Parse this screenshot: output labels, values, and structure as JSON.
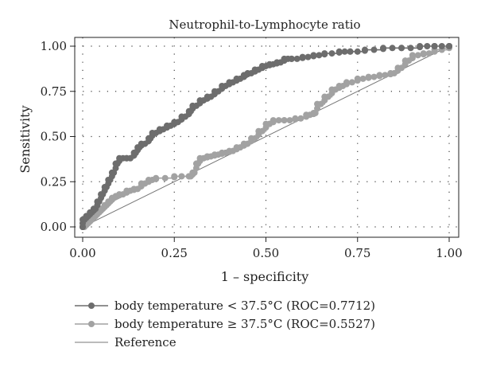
{
  "chart_data": {
    "type": "line",
    "title": "Neutrophil-to-Lymphocyte ratio",
    "xlabel": "1 – specificity",
    "ylabel": "Sensitivity",
    "xlim": [
      0,
      1
    ],
    "ylim": [
      0,
      1
    ],
    "xticks": [
      "0.00",
      "0.25",
      "0.50",
      "0.75",
      "1.00"
    ],
    "yticks": [
      "0.00",
      "0.25",
      "0.50",
      "0.75",
      "1.00"
    ],
    "grid": "dotted",
    "legend_position": "bottom",
    "series": [
      {
        "name": "body temperature < 37.5°C (ROC=0.7712)",
        "color": "#6d6d6d",
        "marker": "circle",
        "x": [
          0,
          0,
          0.01,
          0.02,
          0.03,
          0.04,
          0.05,
          0.06,
          0.07,
          0.08,
          0.09,
          0.1,
          0.12,
          0.14,
          0.15,
          0.16,
          0.18,
          0.19,
          0.21,
          0.23,
          0.25,
          0.27,
          0.29,
          0.3,
          0.32,
          0.34,
          0.36,
          0.38,
          0.4,
          0.42,
          0.44,
          0.45,
          0.47,
          0.49,
          0.51,
          0.53,
          0.55,
          0.57,
          0.6,
          0.63,
          0.66,
          0.7,
          0.73,
          0.77,
          0.82,
          0.87,
          0.92,
          0.96,
          1.0
        ],
        "y": [
          0,
          0.04,
          0.06,
          0.08,
          0.1,
          0.14,
          0.18,
          0.22,
          0.26,
          0.3,
          0.35,
          0.38,
          0.38,
          0.41,
          0.44,
          0.46,
          0.49,
          0.52,
          0.54,
          0.56,
          0.58,
          0.61,
          0.64,
          0.67,
          0.7,
          0.72,
          0.75,
          0.78,
          0.8,
          0.82,
          0.84,
          0.85,
          0.87,
          0.89,
          0.9,
          0.91,
          0.93,
          0.93,
          0.94,
          0.95,
          0.96,
          0.97,
          0.97,
          0.98,
          0.99,
          0.99,
          1.0,
          1.0,
          1.0
        ]
      },
      {
        "name": "body temperature ≥ 37.5°C (ROC=0.5527)",
        "color": "#a2a2a2",
        "marker": "circle",
        "x": [
          0,
          0.01,
          0.02,
          0.03,
          0.04,
          0.05,
          0.06,
          0.07,
          0.08,
          0.09,
          0.1,
          0.12,
          0.14,
          0.16,
          0.18,
          0.2,
          0.25,
          0.29,
          0.3,
          0.31,
          0.32,
          0.34,
          0.36,
          0.38,
          0.4,
          0.42,
          0.44,
          0.46,
          0.48,
          0.5,
          0.52,
          0.55,
          0.58,
          0.61,
          0.63,
          0.64,
          0.66,
          0.68,
          0.7,
          0.72,
          0.75,
          0.78,
          0.81,
          0.84,
          0.86,
          0.88,
          0.9,
          0.93,
          0.96,
          1.0
        ],
        "y": [
          0,
          0.02,
          0.04,
          0.06,
          0.08,
          0.1,
          0.12,
          0.14,
          0.16,
          0.17,
          0.18,
          0.2,
          0.21,
          0.24,
          0.26,
          0.27,
          0.28,
          0.28,
          0.3,
          0.35,
          0.38,
          0.39,
          0.4,
          0.41,
          0.42,
          0.44,
          0.46,
          0.49,
          0.53,
          0.57,
          0.59,
          0.59,
          0.6,
          0.62,
          0.63,
          0.68,
          0.72,
          0.76,
          0.78,
          0.8,
          0.82,
          0.83,
          0.84,
          0.85,
          0.88,
          0.92,
          0.95,
          0.96,
          0.98,
          1.0
        ]
      },
      {
        "name": "Reference",
        "color": "#777777",
        "marker": "none",
        "x": [
          0,
          1
        ],
        "y": [
          0,
          1
        ]
      }
    ]
  }
}
